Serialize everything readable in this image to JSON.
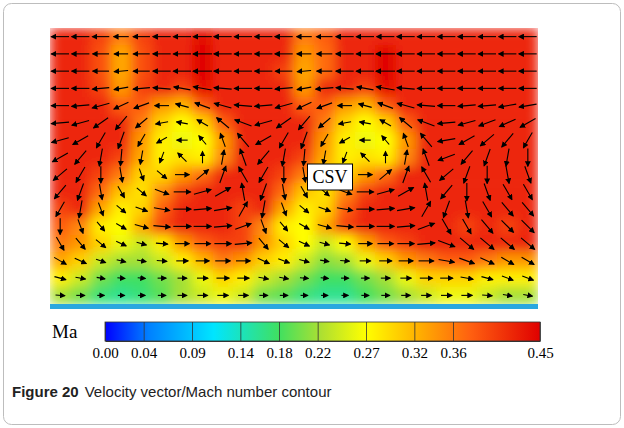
{
  "chart_data": {
    "type": "heatmap",
    "title": "Figure 20",
    "subtitle": "Velocity vector/Mach number contour",
    "annotations": [
      {
        "text": "CSV"
      }
    ],
    "colorbar": {
      "label": "Ma",
      "range": [
        0,
        0.45
      ],
      "ticks": [
        {
          "value": 0,
          "label": "0.00"
        },
        0.04,
        0.09,
        0.14,
        0.18,
        0.22,
        0.27,
        0.32,
        0.36,
        0.45
      ]
    },
    "cells": [
      [
        0.42,
        0.42,
        0.4,
        0.36,
        0.4,
        0.42,
        0.42,
        0.44,
        0.42,
        0.42,
        0.42,
        0.42,
        0.36,
        0.38,
        0.42,
        0.42,
        0.42,
        0.42,
        0.42,
        0.42,
        0.42,
        0.42,
        0.42,
        0.42
      ],
      [
        0.42,
        0.42,
        0.39,
        0.33,
        0.39,
        0.42,
        0.42,
        0.45,
        0.42,
        0.42,
        0.42,
        0.42,
        0.34,
        0.37,
        0.42,
        0.42,
        0.45,
        0.42,
        0.42,
        0.42,
        0.42,
        0.42,
        0.42,
        0.42
      ],
      [
        0.42,
        0.42,
        0.39,
        0.33,
        0.39,
        0.42,
        0.42,
        0.45,
        0.42,
        0.42,
        0.42,
        0.4,
        0.33,
        0.37,
        0.42,
        0.42,
        0.45,
        0.42,
        0.42,
        0.42,
        0.42,
        0.42,
        0.42,
        0.42
      ],
      [
        0.42,
        0.42,
        0.4,
        0.34,
        0.4,
        0.42,
        0.4,
        0.44,
        0.42,
        0.42,
        0.42,
        0.42,
        0.34,
        0.42,
        0.42,
        0.4,
        0.44,
        0.42,
        0.42,
        0.42,
        0.42,
        0.42,
        0.42,
        0.42
      ],
      [
        0.42,
        0.42,
        0.42,
        0.38,
        0.38,
        0.34,
        0.32,
        0.38,
        0.42,
        0.42,
        0.42,
        0.42,
        0.38,
        0.38,
        0.34,
        0.32,
        0.38,
        0.42,
        0.42,
        0.42,
        0.42,
        0.42,
        0.42,
        0.42
      ],
      [
        0.42,
        0.42,
        0.42,
        0.42,
        0.36,
        0.3,
        0.27,
        0.3,
        0.38,
        0.42,
        0.42,
        0.42,
        0.42,
        0.36,
        0.3,
        0.27,
        0.3,
        0.38,
        0.42,
        0.42,
        0.42,
        0.42,
        0.42,
        0.42
      ],
      [
        0.42,
        0.42,
        0.42,
        0.42,
        0.34,
        0.28,
        0.26,
        0.27,
        0.34,
        0.42,
        0.42,
        0.42,
        0.42,
        0.34,
        0.28,
        0.26,
        0.27,
        0.34,
        0.42,
        0.42,
        0.42,
        0.42,
        0.42,
        0.42
      ],
      [
        0.42,
        0.42,
        0.42,
        0.4,
        0.33,
        0.28,
        0.29,
        0.28,
        0.35,
        0.42,
        0.42,
        0.42,
        0.4,
        0.33,
        0.28,
        0.29,
        0.28,
        0.35,
        0.42,
        0.42,
        0.42,
        0.42,
        0.42,
        0.42
      ],
      [
        0.42,
        0.42,
        0.4,
        0.36,
        0.3,
        0.3,
        0.34,
        0.37,
        0.42,
        0.42,
        0.42,
        0.4,
        0.36,
        0.3,
        0.3,
        0.34,
        0.37,
        0.42,
        0.42,
        0.42,
        0.42,
        0.42,
        0.42,
        0.42
      ],
      [
        0.42,
        0.42,
        0.37,
        0.31,
        0.29,
        0.35,
        0.4,
        0.42,
        0.42,
        0.42,
        0.42,
        0.37,
        0.31,
        0.29,
        0.35,
        0.4,
        0.42,
        0.42,
        0.42,
        0.42,
        0.42,
        0.42,
        0.42,
        0.42
      ],
      [
        0.4,
        0.42,
        0.33,
        0.28,
        0.3,
        0.38,
        0.42,
        0.42,
        0.42,
        0.4,
        0.42,
        0.33,
        0.28,
        0.3,
        0.38,
        0.42,
        0.42,
        0.42,
        0.42,
        0.42,
        0.42,
        0.42,
        0.42,
        0.42
      ],
      [
        0.38,
        0.35,
        0.28,
        0.27,
        0.33,
        0.4,
        0.42,
        0.42,
        0.42,
        0.4,
        0.35,
        0.28,
        0.27,
        0.33,
        0.4,
        0.42,
        0.42,
        0.42,
        0.42,
        0.42,
        0.4,
        0.42,
        0.4,
        0.42
      ],
      [
        0.36,
        0.34,
        0.3,
        0.26,
        0.24,
        0.28,
        0.34,
        0.38,
        0.4,
        0.4,
        0.34,
        0.3,
        0.27,
        0.24,
        0.27,
        0.33,
        0.38,
        0.4,
        0.42,
        0.42,
        0.42,
        0.42,
        0.42,
        0.42
      ],
      [
        0.33,
        0.3,
        0.24,
        0.22,
        0.22,
        0.24,
        0.28,
        0.32,
        0.36,
        0.34,
        0.3,
        0.28,
        0.24,
        0.21,
        0.22,
        0.26,
        0.3,
        0.34,
        0.36,
        0.38,
        0.38,
        0.36,
        0.34,
        0.34
      ],
      [
        0.28,
        0.24,
        0.2,
        0.18,
        0.18,
        0.2,
        0.22,
        0.26,
        0.3,
        0.28,
        0.24,
        0.22,
        0.2,
        0.18,
        0.18,
        0.2,
        0.22,
        0.26,
        0.3,
        0.3,
        0.3,
        0.28,
        0.28,
        0.28
      ],
      [
        0.22,
        0.2,
        0.17,
        0.16,
        0.17,
        0.19,
        0.22,
        0.24,
        0.26,
        0.24,
        0.2,
        0.19,
        0.17,
        0.16,
        0.16,
        0.18,
        0.2,
        0.22,
        0.24,
        0.26,
        0.26,
        0.24,
        0.22,
        0.22
      ]
    ],
    "vectors": {
      "angles": [
        [
          180,
          180,
          180,
          180,
          180,
          180,
          180,
          180,
          180,
          180,
          180,
          180,
          180,
          180,
          180,
          180,
          180,
          180,
          180,
          180,
          180,
          180,
          180,
          180
        ],
        [
          180,
          180,
          180,
          180,
          180,
          180,
          180,
          180,
          180,
          180,
          180,
          180,
          180,
          180,
          180,
          180,
          180,
          180,
          180,
          180,
          180,
          180,
          180,
          180
        ],
        [
          180,
          180,
          180,
          185,
          180,
          180,
          180,
          180,
          180,
          180,
          180,
          180,
          185,
          180,
          180,
          180,
          180,
          180,
          180,
          180,
          180,
          180,
          180,
          180
        ],
        [
          180,
          180,
          185,
          190,
          185,
          175,
          170,
          170,
          175,
          180,
          180,
          185,
          190,
          185,
          175,
          170,
          170,
          175,
          180,
          180,
          180,
          180,
          180,
          180
        ],
        [
          180,
          185,
          195,
          205,
          200,
          180,
          165,
          160,
          165,
          175,
          185,
          195,
          205,
          200,
          180,
          165,
          160,
          165,
          175,
          180,
          185,
          185,
          190,
          190
        ],
        [
          185,
          195,
          215,
          230,
          220,
          190,
          170,
          150,
          140,
          160,
          195,
          215,
          230,
          220,
          190,
          170,
          150,
          140,
          160,
          185,
          195,
          200,
          205,
          210
        ],
        [
          195,
          210,
          240,
          250,
          240,
          210,
          180,
          130,
          110,
          130,
          210,
          240,
          250,
          240,
          210,
          180,
          130,
          110,
          130,
          190,
          210,
          220,
          230,
          240
        ],
        [
          210,
          230,
          260,
          265,
          260,
          250,
          135,
          90,
          80,
          110,
          230,
          260,
          265,
          260,
          250,
          135,
          90,
          80,
          110,
          200,
          230,
          250,
          260,
          270
        ],
        [
          220,
          240,
          270,
          280,
          290,
          320,
          0,
          40,
          70,
          120,
          240,
          270,
          280,
          290,
          320,
          0,
          40,
          70,
          120,
          220,
          250,
          270,
          280,
          290
        ],
        [
          230,
          250,
          280,
          300,
          320,
          340,
          0,
          15,
          30,
          100,
          250,
          280,
          300,
          320,
          340,
          0,
          15,
          30,
          100,
          230,
          270,
          290,
          300,
          300
        ],
        [
          240,
          260,
          290,
          320,
          340,
          350,
          0,
          5,
          10,
          60,
          260,
          290,
          320,
          340,
          350,
          0,
          5,
          10,
          60,
          250,
          280,
          300,
          310,
          310
        ],
        [
          270,
          290,
          310,
          330,
          345,
          355,
          0,
          0,
          5,
          20,
          290,
          310,
          330,
          345,
          355,
          0,
          0,
          5,
          20,
          300,
          300,
          310,
          315,
          315
        ],
        [
          300,
          310,
          320,
          335,
          345,
          355,
          0,
          0,
          0,
          5,
          310,
          320,
          335,
          345,
          355,
          0,
          0,
          0,
          5,
          340,
          320,
          320,
          320,
          320
        ],
        [
          330,
          335,
          340,
          345,
          350,
          355,
          0,
          0,
          0,
          0,
          335,
          340,
          345,
          350,
          355,
          0,
          0,
          0,
          0,
          350,
          340,
          335,
          330,
          330
        ],
        [
          345,
          350,
          350,
          355,
          355,
          0,
          0,
          0,
          0,
          0,
          350,
          350,
          355,
          355,
          0,
          0,
          0,
          0,
          0,
          0,
          350,
          345,
          340,
          340
        ],
        [
          355,
          0,
          0,
          0,
          0,
          0,
          0,
          0,
          0,
          0,
          0,
          0,
          0,
          0,
          0,
          0,
          0,
          0,
          0,
          0,
          0,
          355,
          350,
          350
        ]
      ]
    }
  }
}
